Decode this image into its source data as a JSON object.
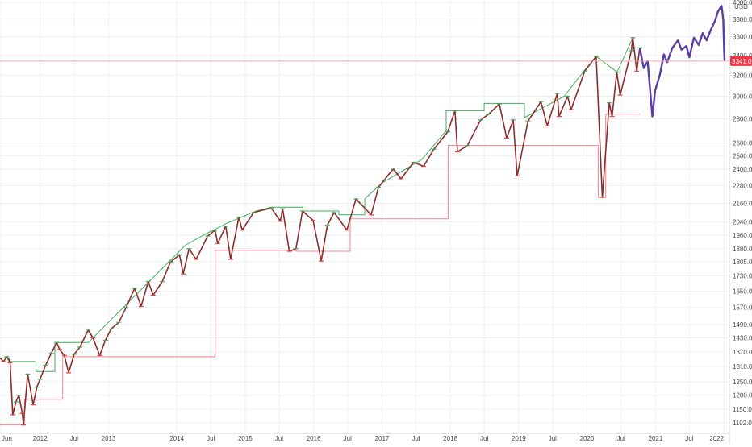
{
  "chart_data": {
    "type": "line",
    "title": "",
    "xlabel": "",
    "ylabel": "",
    "currency": "USD",
    "y_scale": "log",
    "ylim": [
      1070,
      4000
    ],
    "xlim": [
      "2011-06-01",
      "2022-01-05"
    ],
    "grid": true,
    "y_ticks": [
      1102.0,
      1150.0,
      1200.0,
      1250.0,
      1310.0,
      1370.0,
      1430.0,
      1490.0,
      1570.0,
      1650.0,
      1730.0,
      1805.0,
      1880.0,
      1960.0,
      2040.0,
      2160.0,
      2280.0,
      2400.0,
      2500.0,
      2600.0,
      2800.0,
      3000.0,
      3200.0,
      3400.0,
      3600.0,
      3800.0,
      4000.0
    ],
    "x_ticks": [
      {
        "label": "Jun",
        "date": "2011-06-01"
      },
      {
        "label": "2012",
        "date": "2012-01-01"
      },
      {
        "label": "Jul",
        "date": "2012-07-01"
      },
      {
        "label": "2013",
        "date": "2013-01-01"
      },
      {
        "label": "2014",
        "date": "2014-01-01"
      },
      {
        "label": "Jul",
        "date": "2014-07-01"
      },
      {
        "label": "2015",
        "date": "2015-01-01"
      },
      {
        "label": "Jul",
        "date": "2015-07-01"
      },
      {
        "label": "2016",
        "date": "2016-01-01"
      },
      {
        "label": "Jul",
        "date": "2016-07-01"
      },
      {
        "label": "2017",
        "date": "2017-01-01"
      },
      {
        "label": "Jul",
        "date": "2017-07-01"
      },
      {
        "label": "2018",
        "date": "2018-01-01"
      },
      {
        "label": "Jul",
        "date": "2018-07-01"
      },
      {
        "label": "2019",
        "date": "2019-01-01"
      },
      {
        "label": "Jul",
        "date": "2019-07-01"
      },
      {
        "label": "2020",
        "date": "2020-01-01"
      },
      {
        "label": "Jul",
        "date": "2020-07-01"
      },
      {
        "label": "2021",
        "date": "2021-01-01"
      },
      {
        "label": "Jul",
        "date": "2021-07-01"
      },
      {
        "label": "2022",
        "date": "2022-01-01"
      }
    ],
    "price_line": {
      "value": 3341.0,
      "label": "3341.0",
      "color": "#f23645"
    },
    "series": [
      {
        "role": "price",
        "color": "#8b2d2d",
        "points": [
          [
            "2011-06-01",
            1345
          ],
          [
            "2011-06-20",
            1330
          ],
          [
            "2011-07-07",
            1350
          ],
          [
            "2011-07-25",
            1325
          ],
          [
            "2011-08-08",
            1130
          ],
          [
            "2011-08-25",
            1175
          ],
          [
            "2011-09-10",
            1200
          ],
          [
            "2011-09-28",
            1135
          ],
          [
            "2011-10-04",
            1095
          ],
          [
            "2011-10-27",
            1280
          ],
          [
            "2011-11-25",
            1165
          ],
          [
            "2011-12-15",
            1230
          ],
          [
            "2012-01-01",
            1260
          ],
          [
            "2012-01-31",
            1315
          ],
          [
            "2012-03-01",
            1365
          ],
          [
            "2012-03-30",
            1410
          ],
          [
            "2012-04-15",
            1380
          ],
          [
            "2012-05-10",
            1355
          ],
          [
            "2012-06-02",
            1285
          ],
          [
            "2012-07-01",
            1360
          ],
          [
            "2012-08-01",
            1390
          ],
          [
            "2012-09-14",
            1465
          ],
          [
            "2012-10-10",
            1430
          ],
          [
            "2012-11-15",
            1355
          ],
          [
            "2012-12-15",
            1420
          ],
          [
            "2013-01-15",
            1470
          ],
          [
            "2013-02-25",
            1500
          ],
          [
            "2013-04-05",
            1570
          ],
          [
            "2013-05-20",
            1665
          ],
          [
            "2013-06-24",
            1575
          ],
          [
            "2013-08-01",
            1700
          ],
          [
            "2013-08-27",
            1630
          ],
          [
            "2013-10-15",
            1700
          ],
          [
            "2013-11-28",
            1805
          ],
          [
            "2014-01-15",
            1845
          ],
          [
            "2014-02-04",
            1740
          ],
          [
            "2014-03-07",
            1880
          ],
          [
            "2014-04-14",
            1820
          ],
          [
            "2014-06-15",
            1955
          ],
          [
            "2014-07-24",
            1990
          ],
          [
            "2014-08-07",
            1910
          ],
          [
            "2014-09-19",
            2015
          ],
          [
            "2014-10-15",
            1820
          ],
          [
            "2014-11-28",
            2070
          ],
          [
            "2014-12-16",
            1990
          ],
          [
            "2015-02-15",
            2100
          ],
          [
            "2015-05-20",
            2130
          ],
          [
            "2015-07-08",
            2045
          ],
          [
            "2015-07-20",
            2125
          ],
          [
            "2015-08-25",
            1865
          ],
          [
            "2015-09-29",
            1880
          ],
          [
            "2015-11-03",
            2110
          ],
          [
            "2015-12-30",
            2050
          ],
          [
            "2016-02-11",
            1810
          ],
          [
            "2016-03-15",
            2020
          ],
          [
            "2016-04-20",
            2100
          ],
          [
            "2016-06-27",
            1990
          ],
          [
            "2016-08-15",
            2190
          ],
          [
            "2016-11-04",
            2085
          ],
          [
            "2016-12-13",
            2270
          ],
          [
            "2017-03-01",
            2400
          ],
          [
            "2017-04-13",
            2330
          ],
          [
            "2017-06-19",
            2450
          ],
          [
            "2017-08-11",
            2420
          ],
          [
            "2017-10-05",
            2550
          ],
          [
            "2017-12-18",
            2690
          ],
          [
            "2018-01-26",
            2870
          ],
          [
            "2018-02-08",
            2530
          ],
          [
            "2018-04-02",
            2580
          ],
          [
            "2018-06-12",
            2790
          ],
          [
            "2018-07-25",
            2840
          ],
          [
            "2018-09-20",
            2930
          ],
          [
            "2018-10-29",
            2640
          ],
          [
            "2018-12-03",
            2790
          ],
          [
            "2018-12-24",
            2350
          ],
          [
            "2019-02-20",
            2780
          ],
          [
            "2019-04-30",
            2950
          ],
          [
            "2019-06-03",
            2740
          ],
          [
            "2019-07-26",
            3025
          ],
          [
            "2019-08-05",
            2820
          ],
          [
            "2019-09-19",
            3000
          ],
          [
            "2019-10-08",
            2880
          ],
          [
            "2019-12-20",
            3240
          ],
          [
            "2020-02-19",
            3390
          ],
          [
            "2020-03-23",
            2200
          ],
          [
            "2020-04-29",
            2940
          ],
          [
            "2020-05-14",
            2820
          ],
          [
            "2020-06-08",
            3230
          ],
          [
            "2020-06-26",
            3010
          ],
          [
            "2020-08-25",
            3450
          ],
          [
            "2020-09-02",
            3590
          ],
          [
            "2020-09-23",
            3240
          ],
          [
            "2020-10-09",
            3480
          ]
        ]
      },
      {
        "role": "forecast",
        "color": "#5b3fa0",
        "points": [
          [
            "2020-10-09",
            3480
          ],
          [
            "2020-10-30",
            3270
          ],
          [
            "2020-11-20",
            3340
          ],
          [
            "2020-12-15",
            2820
          ],
          [
            "2020-12-30",
            3050
          ],
          [
            "2021-01-25",
            3210
          ],
          [
            "2021-02-15",
            3410
          ],
          [
            "2021-03-05",
            3330
          ],
          [
            "2021-04-01",
            3480
          ],
          [
            "2021-05-01",
            3560
          ],
          [
            "2021-05-20",
            3460
          ],
          [
            "2021-06-15",
            3500
          ],
          [
            "2021-07-01",
            3380
          ],
          [
            "2021-07-25",
            3590
          ],
          [
            "2021-08-20",
            3510
          ],
          [
            "2021-09-10",
            3640
          ],
          [
            "2021-10-01",
            3560
          ],
          [
            "2021-10-20",
            3660
          ],
          [
            "2021-11-15",
            3780
          ],
          [
            "2021-12-01",
            3890
          ],
          [
            "2021-12-20",
            3960
          ],
          [
            "2021-12-29",
            3790
          ],
          [
            "2022-01-03",
            3450
          ],
          [
            "2022-01-05",
            3341
          ]
        ]
      },
      {
        "role": "upper-step",
        "color": "#3fae5a",
        "points": [
          [
            "2011-06-01",
            1345
          ],
          [
            "2011-07-20",
            1345
          ],
          [
            "2011-07-20",
            1330
          ],
          [
            "2011-12-10",
            1330
          ],
          [
            "2011-12-10",
            1290
          ],
          [
            "2012-03-20",
            1290
          ],
          [
            "2012-03-20",
            1410
          ],
          [
            "2012-09-15",
            1410
          ],
          [
            "2014-02-15",
            1900
          ],
          [
            "2014-06-01",
            1965
          ],
          [
            "2014-09-20",
            2030
          ],
          [
            "2015-03-01",
            2110
          ],
          [
            "2015-05-20",
            2135
          ],
          [
            "2015-11-05",
            2135
          ],
          [
            "2015-11-05",
            2110
          ],
          [
            "2016-05-15",
            2110
          ],
          [
            "2016-05-15",
            2085
          ],
          [
            "2016-10-01",
            2085
          ],
          [
            "2016-10-01",
            2190
          ],
          [
            "2017-01-01",
            2300
          ],
          [
            "2017-08-01",
            2470
          ],
          [
            "2017-12-10",
            2700
          ],
          [
            "2017-12-10",
            2870
          ],
          [
            "2018-07-01",
            2870
          ],
          [
            "2018-07-01",
            2935
          ],
          [
            "2019-02-01",
            2935
          ],
          [
            "2019-02-01",
            2810
          ],
          [
            "2019-09-01",
            3000
          ],
          [
            "2019-12-20",
            3250
          ],
          [
            "2020-02-19",
            3390
          ],
          [
            "2020-06-10",
            3230
          ],
          [
            "2020-09-02",
            3590
          ]
        ]
      },
      {
        "role": "lower-step",
        "color": "#f4858b",
        "points": [
          [
            "2011-06-01",
            1095
          ],
          [
            "2011-10-10",
            1095
          ],
          [
            "2011-10-10",
            1185
          ],
          [
            "2012-05-01",
            1185
          ],
          [
            "2012-05-01",
            1350
          ],
          [
            "2014-07-25",
            1350
          ],
          [
            "2014-07-25",
            1870
          ],
          [
            "2015-10-01",
            1870
          ],
          [
            "2015-10-01",
            1865
          ],
          [
            "2016-07-15",
            1865
          ],
          [
            "2016-07-15",
            2060
          ],
          [
            "2017-12-20",
            2060
          ],
          [
            "2017-12-20",
            2580
          ],
          [
            "2020-03-01",
            2580
          ],
          [
            "2020-03-01",
            2200
          ],
          [
            "2020-04-10",
            2200
          ],
          [
            "2020-04-10",
            2840
          ],
          [
            "2020-10-10",
            2840
          ]
        ]
      }
    ]
  }
}
